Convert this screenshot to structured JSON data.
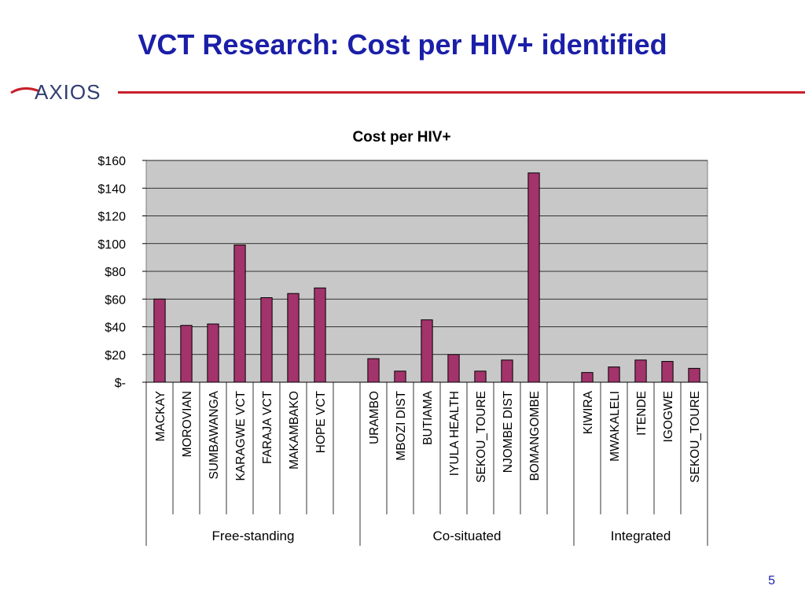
{
  "slide": {
    "title": "VCT Research: Cost per HIV+ identified",
    "logo_text": "AXIOS",
    "page_number": "5"
  },
  "colors": {
    "title": "#1b1fa8",
    "rule": "#c8202a",
    "bar_fill": "#a3336b",
    "plot_background": "#c8c8c8"
  },
  "chart_data": {
    "type": "bar",
    "title": "Cost per HIV+",
    "xlabel": "",
    "ylabel": "",
    "ylim": [
      0,
      160
    ],
    "y_ticks": [
      0,
      20,
      40,
      60,
      80,
      100,
      120,
      140,
      160
    ],
    "y_tick_labels": [
      "$-",
      "$20",
      "$40",
      "$60",
      "$80",
      "$100",
      "$120",
      "$140",
      "$160"
    ],
    "grid": true,
    "legend": "none",
    "categories": [
      "MACKAY",
      "MOROVIAN",
      "SUMBAWANGA",
      "KARAGWE VCT",
      "FARAJA VCT",
      "MAKAMBAKO",
      "HOPE VCT",
      "",
      "URAMBO",
      "MBOZI DIST",
      "BUTIAMA",
      "IYULA HEALTH",
      "SEKOU_TOURE",
      "NJOMBE DIST",
      "BOMANGOMBE",
      "",
      "KIWIRA",
      "MWAKALELI",
      "ITENDE",
      "IGOGWE",
      "SEKOU_TOURE"
    ],
    "values": [
      60,
      41,
      42,
      99,
      61,
      64,
      68,
      null,
      17,
      8,
      45,
      20,
      8,
      16,
      151,
      null,
      7,
      11,
      16,
      15,
      10
    ],
    "groups": [
      {
        "label": "Free-standing",
        "start": 0,
        "end": 7
      },
      {
        "label": "Co-situated",
        "start": 8,
        "end": 15
      },
      {
        "label": "Integrated",
        "start": 16,
        "end": 20
      }
    ]
  }
}
